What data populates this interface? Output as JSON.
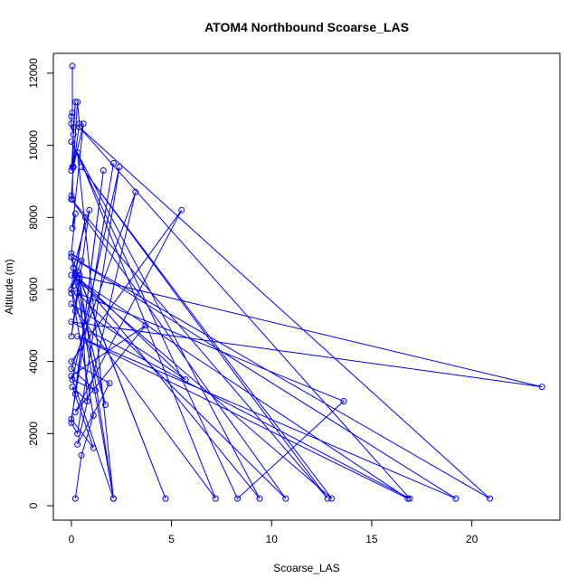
{
  "chart_data": {
    "type": "line",
    "title": "ATOM4 Northbound Scoarse_LAS",
    "xlabel": "Scoarse_LAS",
    "ylabel": "Altitude (m)",
    "xlim": [
      -0.9,
      24.4
    ],
    "ylim": [
      -400,
      12550
    ],
    "xticks": [
      0,
      5,
      10,
      15,
      20
    ],
    "yticks": [
      0,
      2000,
      4000,
      6000,
      8000,
      10000,
      12000
    ],
    "grid": false,
    "line_color": "#0000ff",
    "marker": "open-circle",
    "series": [
      {
        "x": [
          0.05,
          0.05,
          0.0,
          0.0,
          0.1,
          0.05,
          0.0,
          0.2,
          0.1,
          0.05,
          0.0,
          0.3,
          0.4,
          0.1,
          0.6,
          0.05,
          0.2,
          0.0,
          0.5,
          0.3,
          0.1,
          0.7,
          0.0,
          0.1,
          0.9,
          0.2,
          0.0,
          0.4,
          0.8,
          0.05,
          1.1,
          0.0,
          2.1,
          0.2,
          1.6,
          0.0,
          0.3,
          2.4,
          0.05,
          1.2,
          0.0,
          3.2,
          0.3,
          1.9,
          0.0,
          5.5,
          0.2,
          3.7,
          0.0,
          2.1,
          0.4,
          4.7,
          0.0,
          2.1,
          0.3,
          7.2,
          0.0,
          5.7,
          0.4,
          9.4,
          0.0,
          8.3,
          13.6,
          0.3,
          10.7,
          0.0,
          12.8,
          0.5,
          13.0,
          0.0,
          16.8,
          0.3,
          19.2,
          0.0,
          20.9,
          0.4,
          16.9,
          0.0,
          23.5,
          0.2,
          1.7,
          0.0,
          1.1,
          0.5,
          0.2
        ],
        "y": [
          12200,
          10900,
          10800,
          10600,
          10300,
          9400,
          9300,
          11200,
          10500,
          8500,
          8600,
          11200,
          10600,
          9400,
          10600,
          7700,
          8100,
          7000,
          6800,
          6500,
          6100,
          8000,
          5900,
          6600,
          8200,
          5400,
          4700,
          6400,
          2900,
          3300,
          1600,
          2400,
          9500,
          3100,
          9300,
          2300,
          2000,
          9400,
          3500,
          3200,
          3800,
          8700,
          1700,
          3400,
          4000,
          8200,
          2600,
          5000,
          3600,
          200,
          6300,
          200,
          6900,
          200,
          9800,
          200,
          5600,
          3500,
          6300,
          200,
          10100,
          200,
          2900,
          5900,
          200,
          8500,
          200,
          9400,
          200,
          6400,
          200,
          4700,
          200,
          6900,
          200,
          10500,
          200,
          5100,
          3300,
          6400,
          2800,
          6000,
          2500,
          1400,
          200
        ]
      }
    ]
  }
}
